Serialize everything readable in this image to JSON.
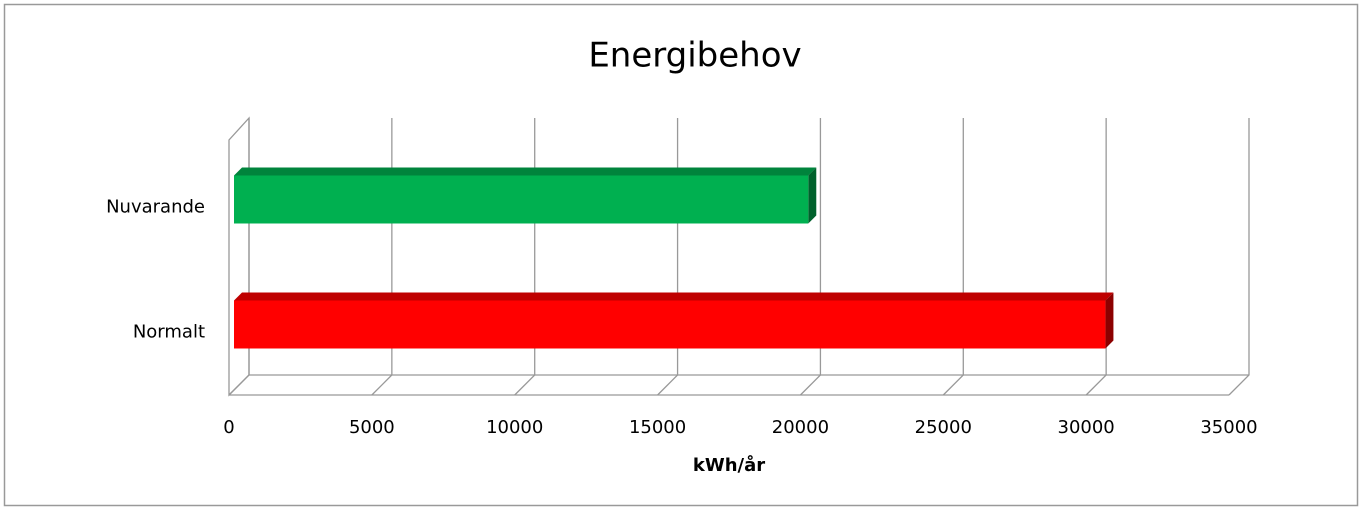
{
  "chart_data": {
    "type": "bar",
    "orientation": "horizontal",
    "title": "Energibehov",
    "categories": [
      "Nuvarande",
      "Normalt"
    ],
    "values": [
      20100,
      30500
    ],
    "colors": [
      "#00b050",
      "#ff0000"
    ],
    "xlabel": "kWh/år",
    "xlim": [
      0,
      35000
    ],
    "xticks": [
      0,
      5000,
      10000,
      15000,
      20000,
      25000,
      30000,
      35000
    ],
    "grid": true
  }
}
